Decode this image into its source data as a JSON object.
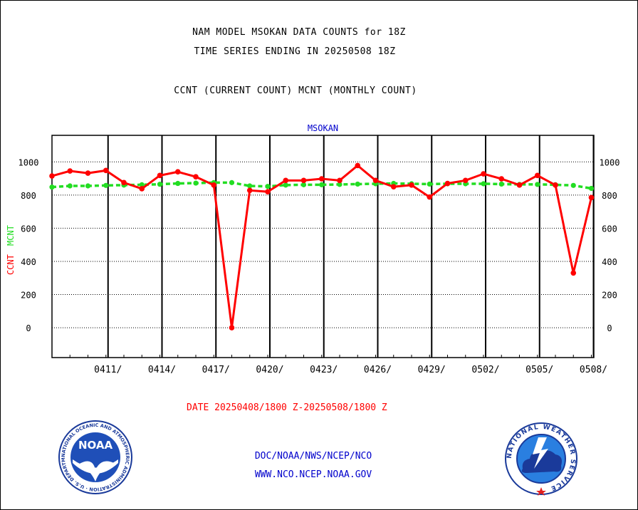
{
  "header": {
    "line1": "NAM MODEL MSOKAN DATA COUNTS for 18Z",
    "line2": "TIME SERIES ENDING IN 20250508 18Z",
    "line3": "CCNT (CURRENT COUNT) MCNT (MONTHLY COUNT)"
  },
  "footer": {
    "date_range": "DATE 20250408/1800 Z-20250508/1800 Z",
    "org": "DOC/NOAA/NWS/NCEP/NCO",
    "url": "WWW.NCO.NCEP.NOAA.GOV"
  },
  "logos": {
    "noaa_text": "NOAA",
    "noaa_ring_text": "NATIONAL OCEANIC AND ATMOSPHERIC ADMINISTRATION · U.S. DEPARTMENT OF COMMERCE",
    "nws_ring_text": "NATIONAL WEATHER SERVICE"
  },
  "colors": {
    "ccnt": "#ff0000",
    "mcnt": "#22dd22",
    "station": "#0000cc"
  },
  "chart_data": {
    "type": "line",
    "title": "MSOKAN",
    "ylabel_left": [
      "CCNT",
      "MCNT"
    ],
    "ylim": [
      -180,
      1160
    ],
    "yticks": [
      0,
      200,
      400,
      600,
      800,
      1000
    ],
    "grid": true,
    "x_dates": [
      "0408",
      "0409",
      "0410",
      "0411",
      "0412",
      "0413",
      "0414",
      "0415",
      "0416",
      "0417",
      "0418",
      "0419",
      "0420",
      "0421",
      "0422",
      "0423",
      "0424",
      "0425",
      "0426",
      "0427",
      "0428",
      "0429",
      "0430",
      "0501",
      "0502",
      "0503",
      "0504",
      "0505",
      "0506",
      "0507",
      "0508"
    ],
    "xtick_labels": [
      "0411/",
      "0414/",
      "0417/",
      "0420/",
      "0423/",
      "0426/",
      "0429/",
      "0502/",
      "0505/",
      "0508/"
    ],
    "series": [
      {
        "name": "CCNT",
        "values": [
          915,
          945,
          932,
          948,
          875,
          838,
          918,
          940,
          910,
          860,
          0,
          828,
          820,
          888,
          888,
          898,
          888,
          978,
          888,
          850,
          860,
          788,
          870,
          888,
          928,
          898,
          860,
          918,
          860,
          330,
          785
        ]
      },
      {
        "name": "MCNT",
        "values": [
          848,
          855,
          855,
          858,
          860,
          862,
          865,
          870,
          872,
          875,
          875,
          855,
          852,
          860,
          862,
          862,
          864,
          866,
          868,
          870,
          868,
          866,
          868,
          868,
          868,
          866,
          864,
          864,
          862,
          858,
          840
        ]
      }
    ]
  }
}
